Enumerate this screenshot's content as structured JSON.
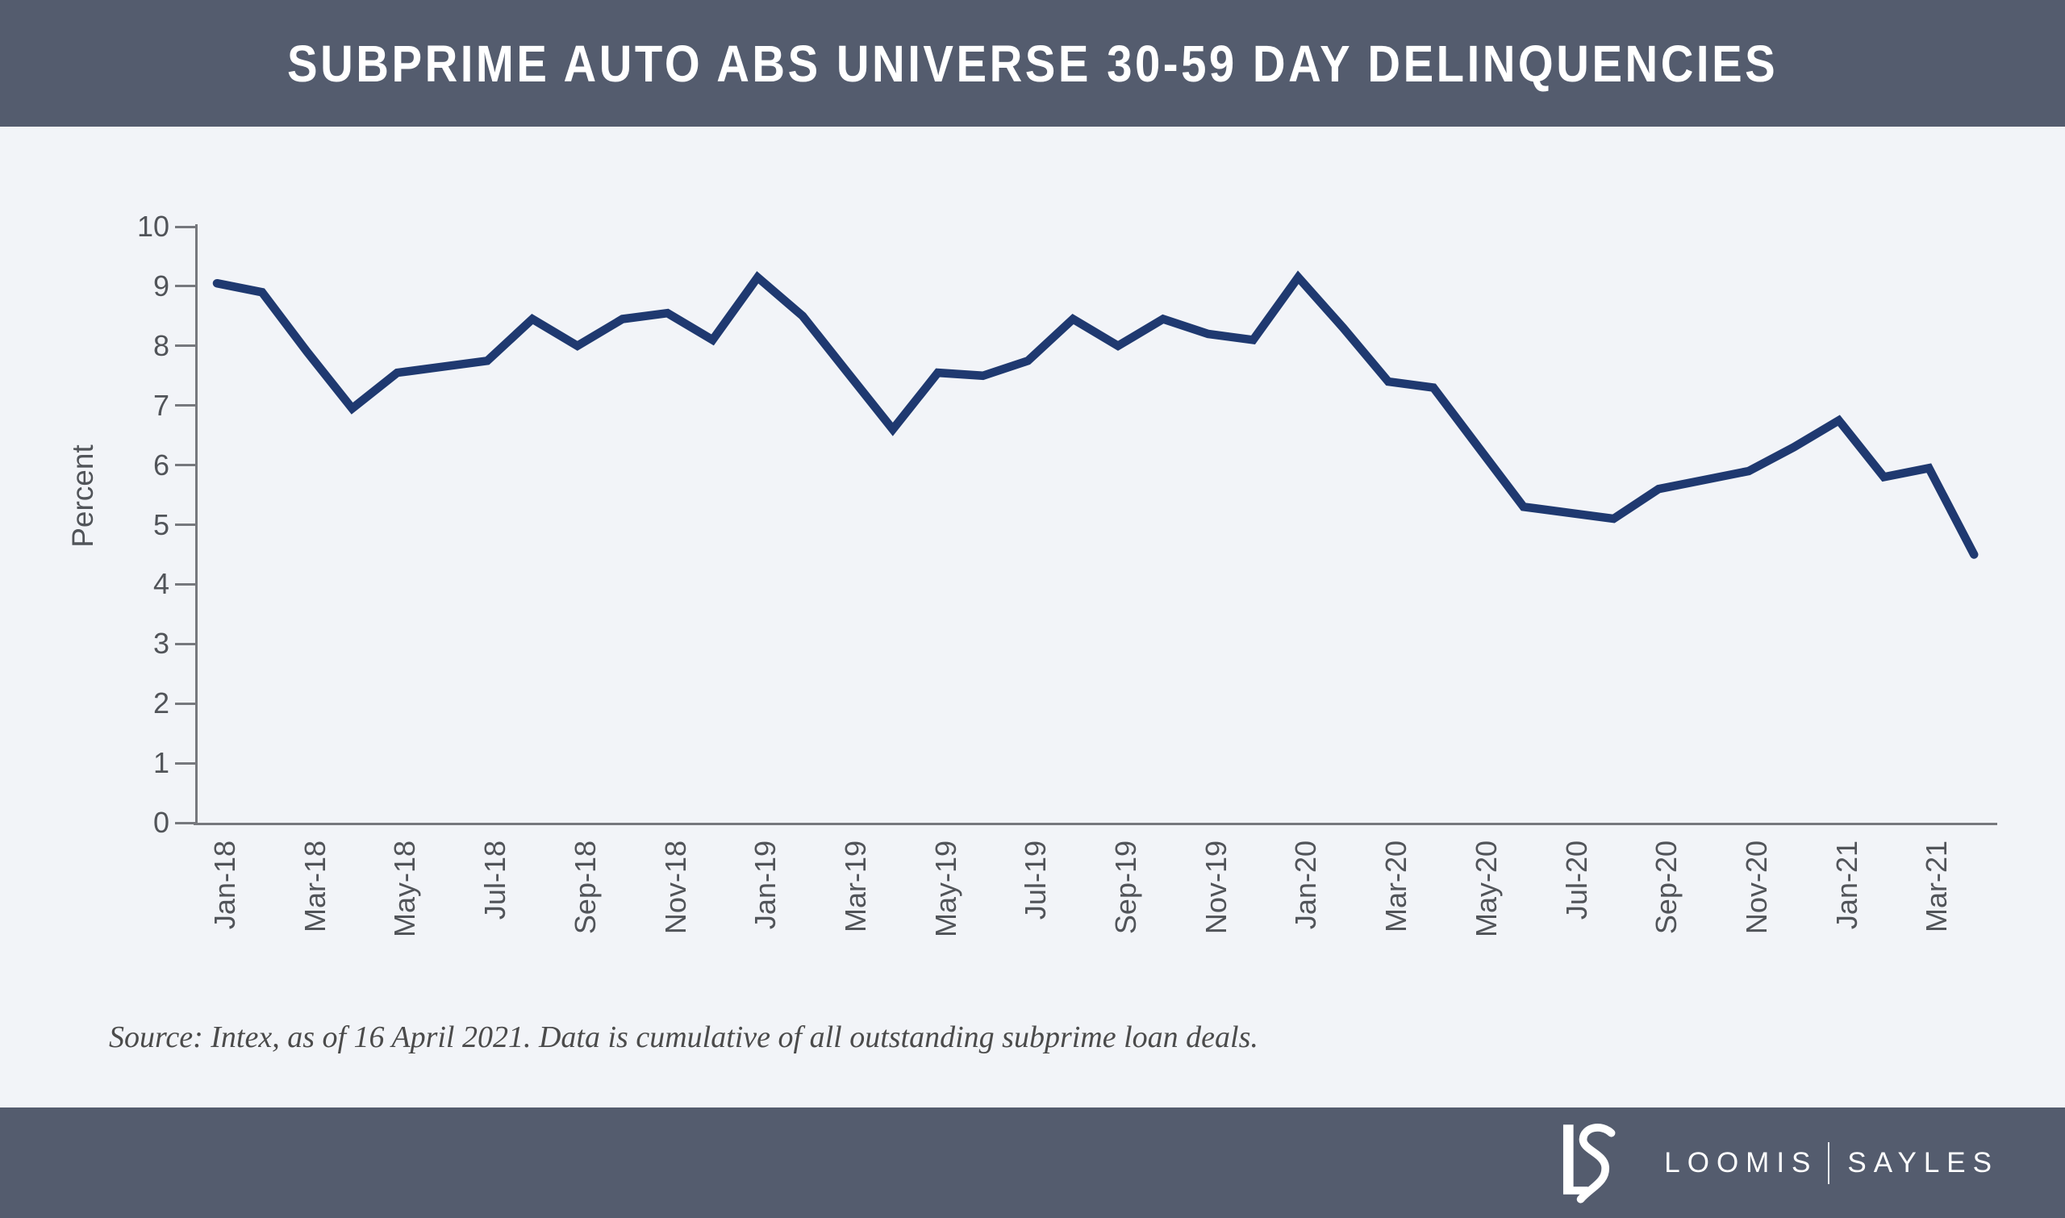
{
  "header": {
    "title": "SUBPRIME AUTO ABS UNIVERSE 30-59 DAY DELINQUENCIES"
  },
  "chart_data": {
    "type": "line",
    "title": "SUBPRIME AUTO ABS UNIVERSE 30-59 DAY DELINQUENCIES",
    "xlabel": "",
    "ylabel": "Percent",
    "ylim": [
      0,
      10
    ],
    "yticks": [
      0,
      1,
      2,
      3,
      4,
      5,
      6,
      7,
      8,
      9,
      10
    ],
    "grid": false,
    "legend_position": "none",
    "line_color": "#1f3970",
    "x": [
      "Jan-18",
      "Feb-18",
      "Mar-18",
      "Apr-18",
      "May-18",
      "Jun-18",
      "Jul-18",
      "Aug-18",
      "Sep-18",
      "Oct-18",
      "Nov-18",
      "Dec-18",
      "Jan-19",
      "Feb-19",
      "Mar-19",
      "Apr-19",
      "May-19",
      "Jun-19",
      "Jul-19",
      "Aug-19",
      "Sep-19",
      "Oct-19",
      "Nov-19",
      "Dec-19",
      "Jan-20",
      "Feb-20",
      "Mar-20",
      "Apr-20",
      "May-20",
      "Jun-20",
      "Jul-20",
      "Aug-20",
      "Sep-20",
      "Oct-20",
      "Nov-20",
      "Dec-20",
      "Jan-21",
      "Feb-21",
      "Mar-21",
      "Apr-21"
    ],
    "values": [
      9.05,
      8.9,
      7.9,
      6.95,
      7.55,
      7.65,
      7.75,
      8.45,
      8.0,
      8.45,
      8.55,
      8.1,
      9.15,
      8.5,
      7.55,
      6.6,
      7.55,
      7.5,
      7.75,
      8.45,
      8.0,
      8.45,
      8.2,
      8.1,
      9.15,
      8.3,
      7.4,
      7.3,
      6.3,
      5.3,
      5.2,
      5.1,
      5.6,
      5.75,
      5.9,
      6.3,
      6.75,
      5.8,
      5.95,
      4.5
    ],
    "xtick_labels_shown": [
      "Jan-18",
      "Mar-18",
      "May-18",
      "Jul-18",
      "Sep-18",
      "Nov-18",
      "Jan-19",
      "Mar-19",
      "May-19",
      "Jul-19",
      "Sep-19",
      "Nov-19",
      "Jan-20",
      "Mar-20",
      "May-20",
      "Jul-20",
      "Sep-20",
      "Nov-20",
      "Jan-21",
      "Mar-21"
    ]
  },
  "footnote": {
    "source_text": "Source: Intex, as of 16 April 2021. Data is cumulative of all outstanding subprime loan deals."
  },
  "footer": {
    "brand_left": "LOOMIS",
    "brand_right": "SAYLES",
    "logo": "ls-monogram"
  },
  "colors": {
    "bar_background": "#545c6e",
    "page_background": "#f2f4f8",
    "line": "#1f3970",
    "axis": "#76787d",
    "tick_label": "#515459",
    "title_text": "#ffffff",
    "source_text": "#4b4b4b"
  }
}
